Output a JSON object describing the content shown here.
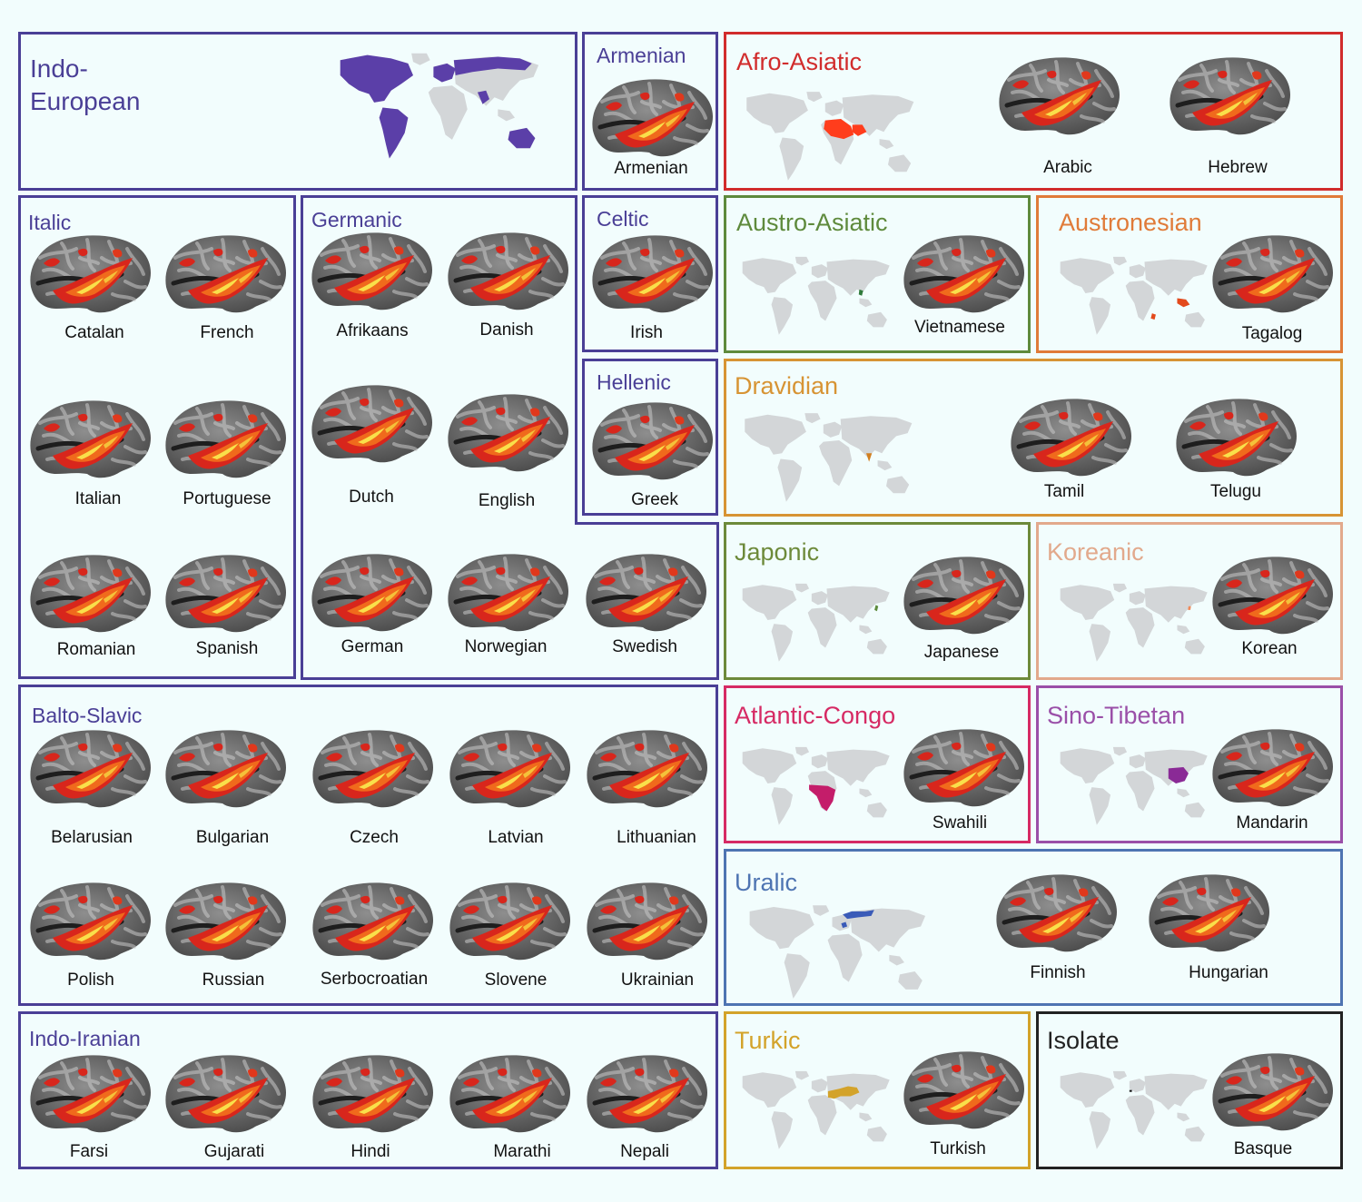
{
  "colors": {
    "indo_european": "#4a3f96",
    "afro_asiatic": "#d12c2c",
    "austro_asiatic": "#5e8a3c",
    "austronesian": "#e07b39",
    "dravidian": "#d79434",
    "japonic": "#6d8a3a",
    "koreanic": "#e2a98c",
    "atlantic_congo": "#d62a64",
    "sino_tibetan": "#9a4fa8",
    "uralic": "#4e74b2",
    "turkic": "#d3a32a",
    "isolate": "#222222"
  },
  "indo_european": {
    "title": "Indo-\nEuropean"
  },
  "armenian": {
    "title": "Armenian",
    "languages": [
      "Armenian"
    ]
  },
  "italic": {
    "title": "Italic",
    "languages": [
      "Catalan",
      "French",
      "Italian",
      "Portuguese",
      "Romanian",
      "Spanish"
    ]
  },
  "germanic": {
    "title": "Germanic",
    "languages": [
      "Afrikaans",
      "Danish",
      "Dutch",
      "English",
      "German",
      "Norwegian",
      "Swedish"
    ]
  },
  "celtic": {
    "title": "Celtic",
    "languages": [
      "Irish"
    ]
  },
  "hellenic": {
    "title": "Hellenic",
    "languages": [
      "Greek"
    ]
  },
  "balto_slavic": {
    "title": "Balto-Slavic",
    "languages": [
      "Belarusian",
      "Bulgarian",
      "Czech",
      "Latvian",
      "Lithuanian",
      "Polish",
      "Russian",
      "Serbocroatian",
      "Slovene",
      "Ukrainian"
    ]
  },
  "indo_iranian": {
    "title": "Indo-Iranian",
    "languages": [
      "Farsi",
      "Gujarati",
      "Hindi",
      "Marathi",
      "Nepali"
    ]
  },
  "afro_asiatic": {
    "title": "Afro-Asiatic",
    "languages": [
      "Arabic",
      "Hebrew"
    ]
  },
  "austro_asiatic": {
    "title": "Austro-Asiatic",
    "languages": [
      "Vietnamese"
    ]
  },
  "austronesian": {
    "title": "Austronesian",
    "languages": [
      "Tagalog"
    ]
  },
  "dravidian": {
    "title": "Dravidian",
    "languages": [
      "Tamil",
      "Telugu"
    ]
  },
  "japonic": {
    "title": "Japonic",
    "languages": [
      "Japanese"
    ]
  },
  "koreanic": {
    "title": "Koreanic",
    "languages": [
      "Korean"
    ]
  },
  "atlantic_congo": {
    "title": "Atlantic-Congo",
    "languages": [
      "Swahili"
    ]
  },
  "sino_tibetan": {
    "title": "Sino-Tibetan",
    "languages": [
      "Mandarin"
    ]
  },
  "uralic": {
    "title": "Uralic",
    "languages": [
      "Finnish",
      "Hungarian"
    ]
  },
  "turkic": {
    "title": "Turkic",
    "languages": [
      "Turkish"
    ]
  },
  "isolate": {
    "title": "Isolate",
    "languages": [
      "Basque"
    ]
  }
}
